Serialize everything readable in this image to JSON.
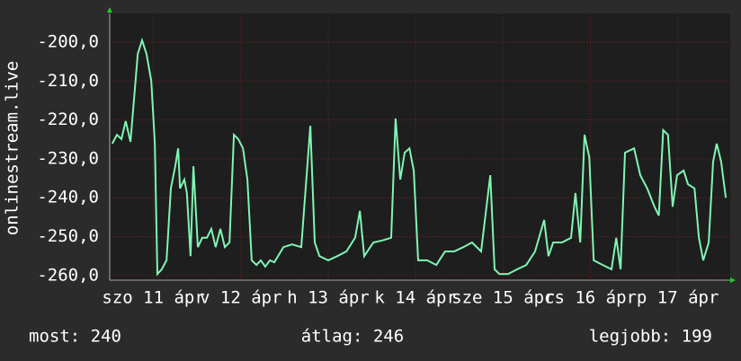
{
  "chart_data": {
    "type": "line",
    "ylabel": "onlinestream.live",
    "x": [
      0.7,
      2.0,
      3.2,
      4.4,
      5.7,
      6.9,
      7.7,
      8.9,
      10.1,
      11.4,
      12.4,
      13.1,
      14.3,
      15.6,
      16.8,
      18.0,
      18.8,
      19.3,
      20.5,
      21.2,
      22.2,
      23.0,
      24.2,
      25.4,
      26.7,
      27.9,
      29.1,
      30.4,
      31.6,
      32.9,
      34.1,
      35.3,
      36.6,
      37.8,
      39.0,
      40.3,
      41.5,
      42.7,
      44.0,
      45.2,
      47.7,
      50.1,
      52.6,
      55.1,
      56.3,
      57.6,
      60.0,
      62.5,
      65.0,
      67.4,
      68.7,
      69.9,
      72.4,
      74.8,
      77.3,
      78.5,
      79.8,
      81.0,
      82.3,
      83.5,
      84.7,
      87.2,
      89.7,
      92.1,
      94.6,
      97.1,
      99.5,
      102.0,
      104.5,
      105.7,
      107.0,
      109.4,
      111.9,
      114.4,
      116.8,
      119.3,
      120.5,
      121.8,
      124.2,
      126.7,
      127.9,
      129.2,
      130.4,
      131.7,
      132.9,
      135.4,
      137.8,
      139.1,
      140.3,
      141.5,
      144.0,
      145.7,
      147.6,
      149.6,
      150.8,
      152.0,
      153.3,
      154.6,
      155.8,
      157.6,
      158.8,
      160.6,
      161.8,
      163.0,
      164.5,
      165.7,
      166.7,
      167.9,
      169.2
    ],
    "series": [
      {
        "color": "#7ff5b4",
        "values": [
          -226.1,
          -223.8,
          -224.9,
          -220.3,
          -225.6,
          -212.2,
          -203.0,
          -199.5,
          -203.0,
          -209.9,
          -226.1,
          -259.6,
          -258.4,
          -256.1,
          -237.6,
          -231.9,
          -227.3,
          -237.6,
          -235.3,
          -238.8,
          -255.0,
          -231.9,
          -252.7,
          -250.3,
          -250.3,
          -248.0,
          -252.7,
          -248.0,
          -252.7,
          -251.5,
          -223.8,
          -224.9,
          -227.3,
          -235.3,
          -256.1,
          -257.3,
          -256.1,
          -257.7,
          -256.1,
          -256.6,
          -252.7,
          -252.0,
          -252.7,
          -221.5,
          -251.5,
          -255.0,
          -256.1,
          -255.0,
          -253.8,
          -250.3,
          -243.4,
          -255.0,
          -251.5,
          -251.0,
          -250.3,
          -219.6,
          -235.3,
          -228.4,
          -227.3,
          -233.0,
          -256.1,
          -256.1,
          -257.3,
          -253.8,
          -253.8,
          -252.7,
          -251.5,
          -253.8,
          -234.2,
          -258.4,
          -259.6,
          -259.6,
          -258.4,
          -257.3,
          -253.8,
          -245.7,
          -255.0,
          -251.5,
          -251.5,
          -250.3,
          -238.8,
          -251.5,
          -223.8,
          -229.6,
          -256.1,
          -257.3,
          -258.4,
          -250.3,
          -258.4,
          -228.4,
          -227.3,
          -234.2,
          -237.6,
          -242.3,
          -244.6,
          -222.6,
          -223.8,
          -242.3,
          -234.2,
          -233.0,
          -236.5,
          -237.6,
          -250.3,
          -256.1,
          -251.5,
          -230.7,
          -226.1,
          -230.7,
          -240.0
        ]
      }
    ],
    "xlim": [
      0,
      170.4
    ],
    "xticks": [
      {
        "value": 12,
        "label": "szo 11 ápr"
      },
      {
        "value": 36,
        "label": "v 12 ápr"
      },
      {
        "value": 60,
        "label": "h 13 ápr"
      },
      {
        "value": 84,
        "label": "k 14 ápr"
      },
      {
        "value": 108,
        "label": "sze 15 ápr"
      },
      {
        "value": 132,
        "label": "cs 16 ápr"
      },
      {
        "value": 156,
        "label": "p 17 ápr"
      }
    ],
    "ylim": [
      -261.2,
      -192.6
    ],
    "yticks": [
      {
        "value": -260,
        "label": "-260,0"
      },
      {
        "value": -250,
        "label": "-250,0"
      },
      {
        "value": -240,
        "label": "-240,0"
      },
      {
        "value": -230,
        "label": "-230,0"
      },
      {
        "value": -220,
        "label": "-220,0"
      },
      {
        "value": -210,
        "label": "-210,0"
      },
      {
        "value": -200,
        "label": "-200,0"
      }
    ],
    "grid": true,
    "stats": [
      "most: 240",
      "átlag: 246",
      "legjobb: 199"
    ]
  }
}
